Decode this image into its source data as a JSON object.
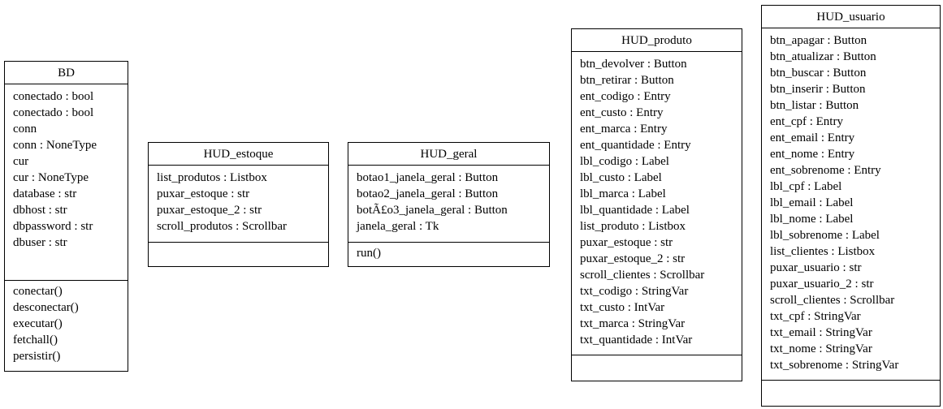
{
  "classes": {
    "bd": {
      "name": "BD",
      "attributes": [
        "conectado : bool",
        "conectado : bool",
        "conn",
        "conn : NoneType",
        "cur",
        "cur : NoneType",
        "database : str",
        "dbhost : str",
        "dbpassword : str",
        "dbuser : str"
      ],
      "operations": [
        "conectar()",
        "desconectar()",
        "executar()",
        "fetchall()",
        "persistir()"
      ]
    },
    "hud_estoque": {
      "name": "HUD_estoque",
      "attributes": [
        "list_produtos : Listbox",
        "puxar_estoque : str",
        "puxar_estoque_2 : str",
        "scroll_produtos : Scrollbar"
      ],
      "operations": []
    },
    "hud_geral": {
      "name": "HUD_geral",
      "attributes": [
        "botao1_janela_geral : Button",
        "botao2_janela_geral : Button",
        "botÃ£o3_janela_geral : Button",
        "janela_geral : Tk"
      ],
      "operations": [
        "run()"
      ]
    },
    "hud_produto": {
      "name": "HUD_produto",
      "attributes": [
        "btn_devolver : Button",
        "btn_retirar : Button",
        "ent_codigo : Entry",
        "ent_custo : Entry",
        "ent_marca : Entry",
        "ent_quantidade : Entry",
        "lbl_codigo : Label",
        "lbl_custo : Label",
        "lbl_marca : Label",
        "lbl_quantidade : Label",
        "list_produto : Listbox",
        "puxar_estoque : str",
        "puxar_estoque_2 : str",
        "scroll_clientes : Scrollbar",
        "txt_codigo : StringVar",
        "txt_custo : IntVar",
        "txt_marca : StringVar",
        "txt_quantidade : IntVar"
      ],
      "operations": []
    },
    "hud_usuario": {
      "name": "HUD_usuario",
      "attributes": [
        "btn_apagar : Button",
        "btn_atualizar : Button",
        "btn_buscar : Button",
        "btn_inserir : Button",
        "btn_listar : Button",
        "ent_cpf : Entry",
        "ent_email : Entry",
        "ent_nome : Entry",
        "ent_sobrenome : Entry",
        "lbl_cpf : Label",
        "lbl_email : Label",
        "lbl_nome : Label",
        "lbl_sobrenome : Label",
        "list_clientes : Listbox",
        "puxar_usuario : str",
        "puxar_usuario_2 : str",
        "scroll_clientes : Scrollbar",
        "txt_cpf : StringVar",
        "txt_email : StringVar",
        "txt_nome : StringVar",
        "txt_sobrenome : StringVar"
      ],
      "operations": []
    }
  }
}
